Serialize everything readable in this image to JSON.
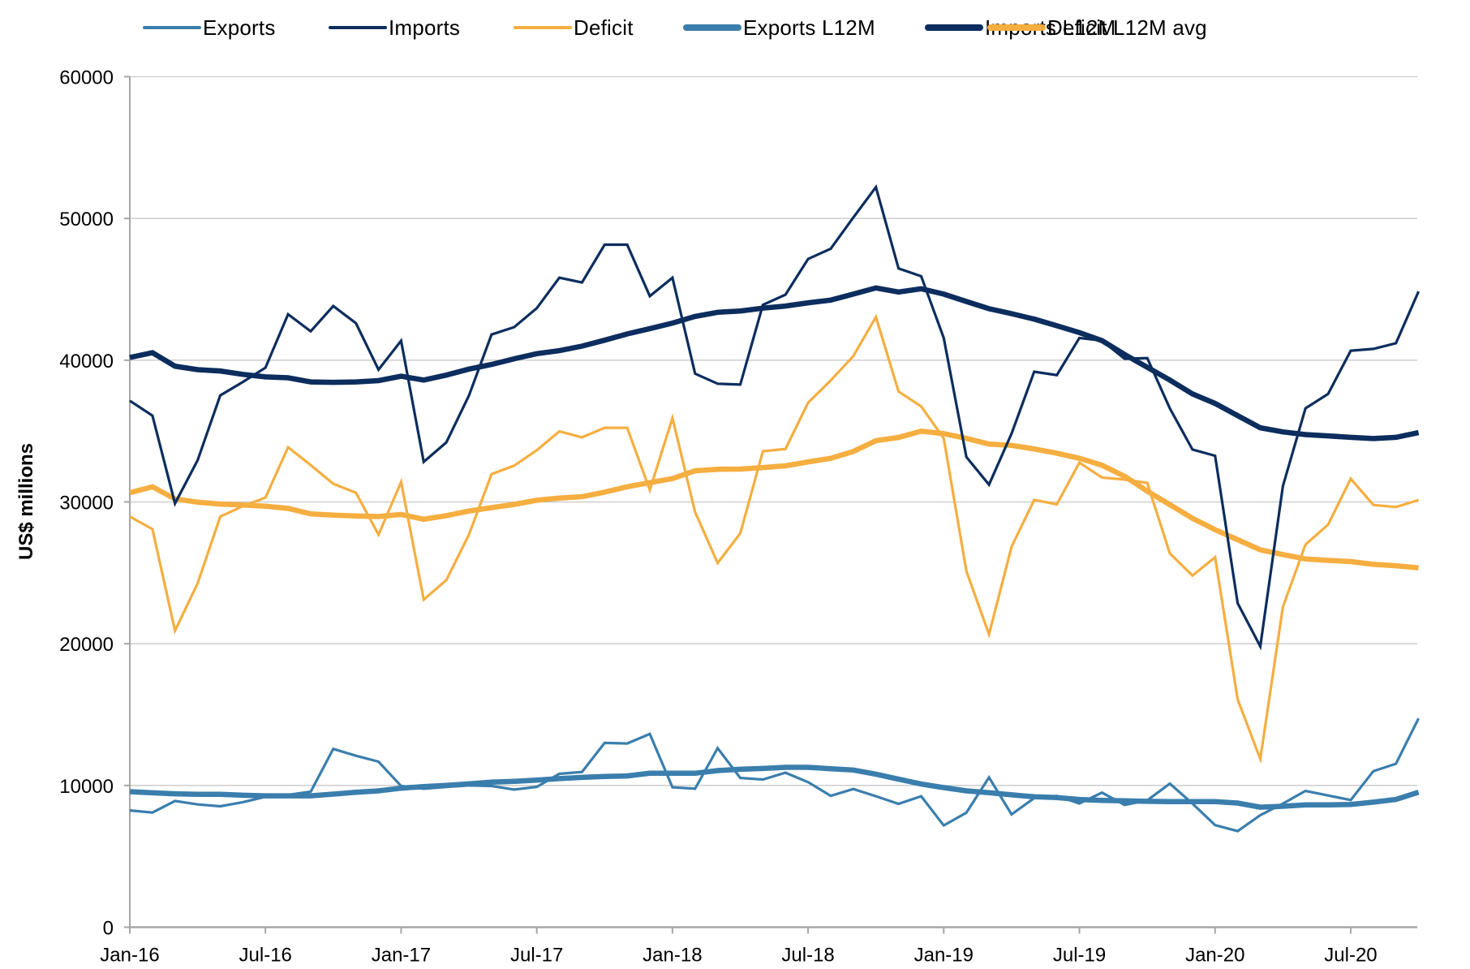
{
  "chart_data": {
    "type": "line",
    "title": "",
    "xlabel": "",
    "ylabel": "US$ millions",
    "ylim": [
      0,
      60000
    ],
    "yticks": [
      0,
      10000,
      20000,
      30000,
      40000,
      50000,
      60000
    ],
    "ytick_labels": [
      "0",
      "10000",
      "20000",
      "30000",
      "40000",
      "50000",
      "60000"
    ],
    "grid": "horizontal",
    "legend_position": "top",
    "x": [
      "Jan-16",
      "Feb-16",
      "Mar-16",
      "Apr-16",
      "May-16",
      "Jun-16",
      "Jul-16",
      "Aug-16",
      "Sep-16",
      "Oct-16",
      "Nov-16",
      "Dec-16",
      "Jan-17",
      "Feb-17",
      "Mar-17",
      "Apr-17",
      "May-17",
      "Jun-17",
      "Jul-17",
      "Aug-17",
      "Sep-17",
      "Oct-17",
      "Nov-17",
      "Dec-17",
      "Jan-18",
      "Feb-18",
      "Mar-18",
      "Apr-18",
      "May-18",
      "Jun-18",
      "Jul-18",
      "Aug-18",
      "Sep-18",
      "Oct-18",
      "Nov-18",
      "Dec-18",
      "Jan-19",
      "Feb-19",
      "Mar-19",
      "Apr-19",
      "May-19",
      "Jun-19",
      "Jul-19",
      "Aug-19",
      "Sep-19",
      "Oct-19",
      "Nov-19",
      "Dec-19",
      "Jan-20",
      "Feb-20",
      "Mar-20",
      "Apr-20",
      "May-20",
      "Jun-20",
      "Jul-20",
      "Aug-20",
      "Sep-20",
      "Oct-20"
    ],
    "xtick_labels": [
      {
        "index": 0,
        "label": "Jan-16"
      },
      {
        "index": 6,
        "label": "Jul-16"
      },
      {
        "index": 12,
        "label": "Jan-17"
      },
      {
        "index": 18,
        "label": "Jul-17"
      },
      {
        "index": 24,
        "label": "Jan-18"
      },
      {
        "index": 30,
        "label": "Jul-18"
      },
      {
        "index": 36,
        "label": "Jan-19"
      },
      {
        "index": 42,
        "label": "Jul-19"
      },
      {
        "index": 48,
        "label": "Jan-20"
      },
      {
        "index": 54,
        "label": "Jul-20"
      }
    ],
    "series": [
      {
        "name": "Exports",
        "color": "#3A7EAD",
        "weight": "thin",
        "values": [
          8240,
          8090,
          8910,
          8660,
          8530,
          8820,
          9200,
          9330,
          9560,
          12580,
          12100,
          11680,
          9960,
          9770,
          9900,
          10000,
          9960,
          9710,
          9900,
          10820,
          10950,
          13000,
          12960,
          13630,
          9870,
          9770,
          12630,
          10530,
          10420,
          10900,
          10230,
          9270,
          9750,
          9240,
          8700,
          9240,
          7180,
          8080,
          10570,
          7960,
          9110,
          9260,
          8730,
          9490,
          8630,
          8950,
          10130,
          8720,
          7200,
          6780,
          7900,
          8720,
          9620,
          9290,
          8970,
          11010,
          11530,
          14730
        ]
      },
      {
        "name": "Imports",
        "color": "#0C2D5E",
        "weight": "thin",
        "values": [
          37140,
          36090,
          29890,
          32940,
          37520,
          38470,
          39470,
          43240,
          42040,
          43820,
          42610,
          39330,
          41370,
          32830,
          34200,
          37500,
          41810,
          42330,
          43670,
          45820,
          45480,
          48150,
          48150,
          44520,
          45820,
          39050,
          38340,
          38280,
          43900,
          44620,
          47140,
          47860,
          50060,
          52210,
          46470,
          45920,
          41570,
          33170,
          31220,
          34820,
          39190,
          38950,
          41570,
          41380,
          40100,
          40150,
          36600,
          33700,
          33260,
          22860,
          19810,
          31130,
          36600,
          37620,
          40670,
          40800,
          41200,
          44850
        ]
      },
      {
        "name": "Deficit",
        "color": "#F5AE40",
        "weight": "thin",
        "values": [
          28970,
          28080,
          20920,
          24260,
          28970,
          29700,
          30310,
          33860,
          32600,
          31280,
          30650,
          27690,
          31410,
          23110,
          24490,
          27690,
          31960,
          32560,
          33650,
          34980,
          34560,
          35230,
          35230,
          30840,
          35920,
          29290,
          25690,
          27790,
          33580,
          33740,
          37000,
          38570,
          40290,
          43050,
          37790,
          36740,
          34490,
          25120,
          20670,
          26840,
          30150,
          29830,
          32770,
          31720,
          31580,
          31340,
          26370,
          24810,
          26100,
          16070,
          11870,
          22610,
          26990,
          28400,
          31640,
          29790,
          29640,
          30140
        ]
      },
      {
        "name": "Exports L12M",
        "color": "#3A7EAD",
        "weight": "thick",
        "values": [
          9560,
          9480,
          9410,
          9370,
          9370,
          9310,
          9270,
          9270,
          9270,
          9390,
          9520,
          9620,
          9810,
          9920,
          10000,
          10110,
          10230,
          10290,
          10380,
          10480,
          10570,
          10630,
          10670,
          10860,
          10860,
          10860,
          11050,
          11140,
          11200,
          11280,
          11280,
          11180,
          11090,
          10800,
          10440,
          10100,
          9850,
          9620,
          9490,
          9340,
          9200,
          9150,
          9010,
          8950,
          8920,
          8880,
          8860,
          8860,
          8860,
          8760,
          8470,
          8530,
          8630,
          8630,
          8660,
          8820,
          9010,
          9520
        ]
      },
      {
        "name": "Imports L12M",
        "color": "#0C2D5E",
        "weight": "thick",
        "values": [
          40190,
          40530,
          39580,
          39330,
          39240,
          39000,
          38820,
          38760,
          38470,
          38440,
          38470,
          38560,
          38870,
          38600,
          38950,
          39370,
          39700,
          40100,
          40460,
          40670,
          40990,
          41410,
          41850,
          42230,
          42620,
          43090,
          43380,
          43470,
          43670,
          43820,
          44050,
          44240,
          44660,
          45100,
          44810,
          45040,
          44660,
          44140,
          43630,
          43280,
          42900,
          42430,
          41950,
          41380,
          40400,
          39500,
          38600,
          37620,
          36950,
          36090,
          35230,
          34940,
          34750,
          34660,
          34560,
          34470,
          34560,
          34890
        ]
      },
      {
        "name": "Deficit L12M avg",
        "color": "#F5AE40",
        "weight": "thick",
        "values": [
          30650,
          31070,
          30210,
          29980,
          29850,
          29790,
          29700,
          29540,
          29160,
          29070,
          29010,
          28970,
          29120,
          28780,
          29030,
          29360,
          29600,
          29830,
          30120,
          30270,
          30370,
          30690,
          31070,
          31360,
          31650,
          32200,
          32310,
          32320,
          32430,
          32550,
          32820,
          33080,
          33560,
          34320,
          34550,
          34990,
          34820,
          34480,
          34090,
          33990,
          33740,
          33440,
          33080,
          32590,
          31810,
          30760,
          29810,
          28850,
          28040,
          27340,
          26620,
          26290,
          25980,
          25880,
          25790,
          25600,
          25500,
          25350
        ]
      }
    ]
  }
}
